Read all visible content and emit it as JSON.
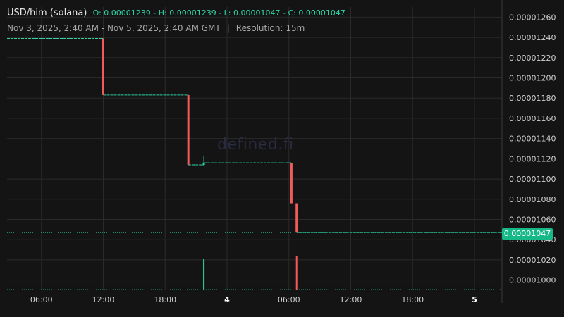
{
  "header": {
    "pair": "USD/him (solana)",
    "open": "O: 0.00001239",
    "high": "H: 0.00001239",
    "low": "L: 0.00001047",
    "close": "C: 0.00001047",
    "range": "Nov 3, 2025, 2:40 AM - Nov 5, 2025, 2:40 AM GMT",
    "separator": "|",
    "resolution": "Resolution: 15m"
  },
  "watermark": "defined.fi",
  "current_price_label": "0.00001047",
  "colors": {
    "up": "#2fd3a4",
    "down": "#f05b5b",
    "grid": "#2a2a2a",
    "text": "#cfcfcf",
    "badge": "#15b886"
  },
  "chart_data": {
    "type": "candlestick",
    "x_range": [
      "2025-11-03T02:40Z",
      "2025-11-05T02:40Z"
    ],
    "ylim": [
      9.9e-06,
      1.27e-05
    ],
    "y_ticks": [
      "0.00001000",
      "0.00001020",
      "0.00001040",
      "0.00001060",
      "0.00001080",
      "0.00001100",
      "0.00001120",
      "0.00001140",
      "0.00001160",
      "0.00001180",
      "0.00001200",
      "0.00001220",
      "0.00001240",
      "0.00001260"
    ],
    "x_ticks": [
      {
        "label": "06:00",
        "t": "2025-11-03T06:00Z",
        "bold": false
      },
      {
        "label": "12:00",
        "t": "2025-11-03T12:00Z",
        "bold": false
      },
      {
        "label": "18:00",
        "t": "2025-11-03T18:00Z",
        "bold": false
      },
      {
        "label": "4",
        "t": "2025-11-04T00:00Z",
        "bold": true
      },
      {
        "label": "06:00",
        "t": "2025-11-04T06:00Z",
        "bold": false
      },
      {
        "label": "12:00",
        "t": "2025-11-04T12:00Z",
        "bold": false
      },
      {
        "label": "18:00",
        "t": "2025-11-04T18:00Z",
        "bold": false
      },
      {
        "label": "5",
        "t": "2025-11-05T00:00Z",
        "bold": true
      }
    ],
    "flat_segments": [
      {
        "start": "2025-11-03T02:40Z",
        "end": "2025-11-03T12:00Z",
        "price": 1.239e-05
      },
      {
        "start": "2025-11-03T12:00Z",
        "end": "2025-11-03T20:15Z",
        "price": 1.183e-05
      },
      {
        "start": "2025-11-03T20:15Z",
        "end": "2025-11-03T21:45Z",
        "price": 1.114e-05
      },
      {
        "start": "2025-11-03T21:45Z",
        "end": "2025-11-04T06:15Z",
        "price": 1.116e-05
      },
      {
        "start": "2025-11-04T06:45Z",
        "end": "2025-11-05T02:40Z",
        "price": 1.047e-05
      }
    ],
    "candles": [
      {
        "t": "2025-11-03T12:00Z",
        "open": 1.239e-05,
        "high": 1.239e-05,
        "low": 1.183e-05,
        "close": 1.183e-05
      },
      {
        "t": "2025-11-03T20:15Z",
        "open": 1.183e-05,
        "high": 1.183e-05,
        "low": 1.114e-05,
        "close": 1.114e-05
      },
      {
        "t": "2025-11-03T21:45Z",
        "open": 1.114e-05,
        "high": 1.123e-05,
        "low": 1.114e-05,
        "close": 1.116e-05
      },
      {
        "t": "2025-11-04T06:15Z",
        "open": 1.116e-05,
        "high": 1.116e-05,
        "low": 1.076e-05,
        "close": 1.076e-05
      },
      {
        "t": "2025-11-04T06:45Z",
        "open": 1.076e-05,
        "high": 1.076e-05,
        "low": 1.047e-05,
        "close": 1.047e-05
      }
    ],
    "volume": [
      {
        "t": "2025-11-03T21:45Z",
        "value": 0.9,
        "dir": "up"
      },
      {
        "t": "2025-11-04T06:45Z",
        "value": 1.0,
        "dir": "down"
      }
    ],
    "current_price": 1.047e-05
  }
}
